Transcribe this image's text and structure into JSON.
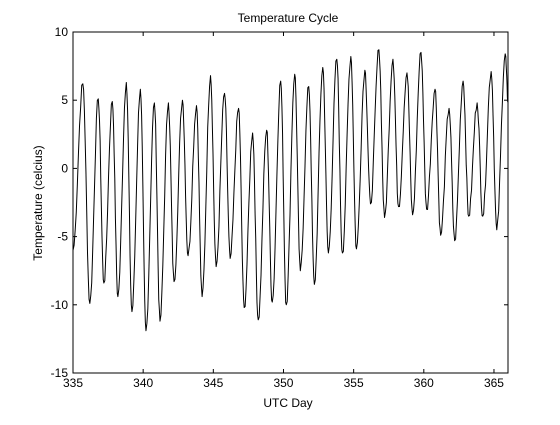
{
  "chart_data": {
    "type": "line",
    "title": "Temperature Cycle",
    "xlabel": "UTC Day",
    "ylabel": "Temperature (celcius)",
    "xlim": [
      335,
      366
    ],
    "ylim": [
      -15,
      10
    ],
    "xticks": [
      335,
      340,
      345,
      350,
      355,
      360,
      365
    ],
    "yticks": [
      -15,
      -10,
      -5,
      0,
      5,
      10
    ],
    "grid": false,
    "line_color": "#000000",
    "series": [
      {
        "cycles": [
          {
            "min_day": 335.0,
            "min": -6.0,
            "max_day": 335.7,
            "max": 6.2
          },
          {
            "min_day": 336.2,
            "min": -9.9,
            "max_day": 336.8,
            "max": 5.1
          },
          {
            "min_day": 337.2,
            "min": -8.4,
            "max_day": 337.8,
            "max": 4.9
          },
          {
            "min_day": 338.2,
            "min": -9.4,
            "max_day": 338.8,
            "max": 6.3
          },
          {
            "min_day": 339.2,
            "min": -10.5,
            "max_day": 339.8,
            "max": 5.8
          },
          {
            "min_day": 340.2,
            "min": -11.9,
            "max_day": 340.8,
            "max": 4.8
          },
          {
            "min_day": 341.2,
            "min": -11.2,
            "max_day": 341.8,
            "max": 4.8
          },
          {
            "min_day": 342.2,
            "min": -8.3,
            "max_day": 342.8,
            "max": 5.0
          },
          {
            "min_day": 343.2,
            "min": -6.4,
            "max_day": 343.8,
            "max": 4.6
          },
          {
            "min_day": 344.2,
            "min": -9.4,
            "max_day": 344.8,
            "max": 6.8
          },
          {
            "min_day": 345.2,
            "min": -7.2,
            "max_day": 345.8,
            "max": 5.5
          },
          {
            "min_day": 346.2,
            "min": -6.6,
            "max_day": 346.8,
            "max": 4.4
          },
          {
            "min_day": 347.2,
            "min": -10.2,
            "max_day": 347.8,
            "max": 2.6
          },
          {
            "min_day": 348.2,
            "min": -11.1,
            "max_day": 348.8,
            "max": 2.8
          },
          {
            "min_day": 349.2,
            "min": -9.8,
            "max_day": 349.8,
            "max": 6.4
          },
          {
            "min_day": 350.2,
            "min": -10.0,
            "max_day": 350.8,
            "max": 6.9
          },
          {
            "min_day": 351.2,
            "min": -7.5,
            "max_day": 351.8,
            "max": 6.0
          },
          {
            "min_day": 352.2,
            "min": -8.5,
            "max_day": 352.8,
            "max": 7.4
          },
          {
            "min_day": 353.2,
            "min": -6.2,
            "max_day": 353.8,
            "max": 8.0
          },
          {
            "min_day": 354.2,
            "min": -6.2,
            "max_day": 354.8,
            "max": 8.2
          },
          {
            "min_day": 355.2,
            "min": -5.9,
            "max_day": 355.8,
            "max": 7.2
          },
          {
            "min_day": 356.2,
            "min": -2.6,
            "max_day": 356.8,
            "max": 8.7
          },
          {
            "min_day": 357.2,
            "min": -3.6,
            "max_day": 357.8,
            "max": 8.0
          },
          {
            "min_day": 358.2,
            "min": -2.8,
            "max_day": 358.8,
            "max": 7.0
          },
          {
            "min_day": 359.2,
            "min": -3.4,
            "max_day": 359.8,
            "max": 8.5
          },
          {
            "min_day": 360.2,
            "min": -3.0,
            "max_day": 360.8,
            "max": 5.8
          },
          {
            "min_day": 361.2,
            "min": -4.9,
            "max_day": 361.8,
            "max": 4.4
          },
          {
            "min_day": 362.2,
            "min": -5.3,
            "max_day": 362.8,
            "max": 6.4
          },
          {
            "min_day": 363.2,
            "min": -3.5,
            "max_day": 363.8,
            "max": 4.8
          },
          {
            "min_day": 364.2,
            "min": -3.5,
            "max_day": 364.8,
            "max": 7.1
          },
          {
            "min_day": 365.2,
            "min": -4.5,
            "max_day": 365.8,
            "max": 8.4
          }
        ],
        "end": {
          "day": 366.0,
          "value": 5.0
        }
      }
    ]
  }
}
